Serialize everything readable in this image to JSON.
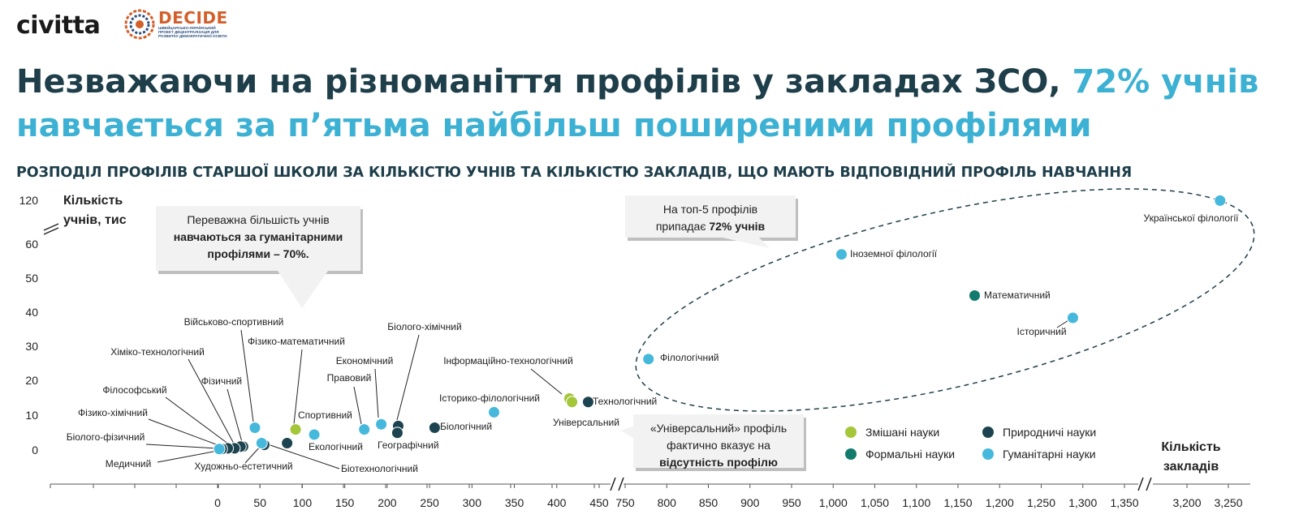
{
  "brand": {
    "civitta": "civitta",
    "decide": "DECIDE",
    "decide_sub": "ШВЕЙЦАРСЬКО-УКРАЇНСЬКИЙ ПРОЕКТ ДЕЦЕНТРАЛІЗАЦІЯ ДЛЯ РОЗВИТКУ ДЕМОКРАТИЧНОЇ ОСВІТИ"
  },
  "headline": {
    "part1": "Незважаючи на різноманіття профілів у закладах ЗСО, ",
    "accent": "72% учнів навчається за п’ятьма найбільш поширеними профілями"
  },
  "chart_title": "РОЗПОДІЛ ПРОФІЛІВ СТАРШОЇ ШКОЛИ ЗА КІЛЬКІСТЮ УЧНІВ ТА КІЛЬКІСТЮ ЗАКЛАДІВ, ЩО МАЮТЬ ВІДПОВІДНИЙ ПРОФІЛЬ НАВЧАННЯ",
  "colors": {
    "mixed": "#a4c639",
    "formal": "#137a6e",
    "natural": "#1c4450",
    "humanities": "#45b8dc",
    "headline": "#1e3e4a",
    "accent": "#3cb1d3"
  },
  "chart_data": {
    "type": "scatter",
    "xlabel": [
      "Кількість",
      "закладів"
    ],
    "ylabel": [
      "Кількість",
      "учнів, тис"
    ],
    "y_ticks": [
      "120",
      "60",
      "50",
      "40",
      "30",
      "20",
      "10",
      "0"
    ],
    "x_ticks": [
      "0",
      "50",
      "100",
      "150",
      "200",
      "250",
      "300",
      "350",
      "400",
      "450",
      "750",
      "800",
      "850",
      "900",
      "950",
      "1,000",
      "1,050",
      "1,100",
      "1,150",
      "1,200",
      "1,250",
      "1,300",
      "1,350",
      "3,200",
      "3,250"
    ],
    "axis_breaks": {
      "x": [
        "450-750",
        "1,350-3,200"
      ],
      "y": [
        "60-120"
      ]
    },
    "legend": [
      {
        "key": "mixed",
        "label": "Змішані науки"
      },
      {
        "key": "natural",
        "label": "Природничі науки"
      },
      {
        "key": "formal",
        "label": "Формальні науки"
      },
      {
        "key": "humanities",
        "label": "Гуманітарні науки"
      }
    ],
    "points": [
      {
        "label": "Української філології",
        "x": 3240,
        "y": 118,
        "group": "humanities"
      },
      {
        "label": "Іноземної філології",
        "x": 1010,
        "y": 57,
        "group": "humanities"
      },
      {
        "label": "Математичний",
        "x": 1170,
        "y": 45,
        "group": "formal"
      },
      {
        "label": "Історичний",
        "x": 1288,
        "y": 38.5,
        "group": "humanities"
      },
      {
        "label": "Філологічний",
        "x": 778,
        "y": 26.5,
        "group": "humanities"
      },
      {
        "label": "Інформаційно-технологічний",
        "x": 415,
        "y": 15,
        "group": "mixed"
      },
      {
        "label": "Універсальний",
        "x": 418,
        "y": 14,
        "group": "mixed"
      },
      {
        "label": "Технологічний",
        "x": 437,
        "y": 14,
        "group": "natural"
      },
      {
        "label": "Історико-філологічний",
        "x": 326,
        "y": 11,
        "group": "humanities"
      },
      {
        "label": "Біологічний",
        "x": 256,
        "y": 6.5,
        "group": "natural"
      },
      {
        "label": "Біолого-хімічний",
        "x": 213,
        "y": 7,
        "group": "natural"
      },
      {
        "label": "Географічний",
        "x": 212,
        "y": 5,
        "group": "natural"
      },
      {
        "label": "Економічний",
        "x": 193,
        "y": 7.5,
        "group": "humanities"
      },
      {
        "label": "Правовий",
        "x": 173,
        "y": 6,
        "group": "humanities"
      },
      {
        "label": "Спортивний",
        "x": 114,
        "y": 4.5,
        "group": "humanities"
      },
      {
        "label": "Фізико-математичний",
        "x": 92,
        "y": 6,
        "group": "mixed"
      },
      {
        "label": "Екологічний",
        "x": 82,
        "y": 2,
        "group": "natural"
      },
      {
        "label": "Біотехнологічний",
        "x": 55,
        "y": 1.5,
        "group": "natural"
      },
      {
        "label": "Військово-спортивний",
        "x": 44,
        "y": 6.5,
        "group": "humanities"
      },
      {
        "label": "Художньо-естетичний",
        "x": 52,
        "y": 2,
        "group": "humanities"
      },
      {
        "label": "Фізичний",
        "x": 30,
        "y": 1,
        "group": "natural"
      },
      {
        "label": "Хіміко-технологічний",
        "x": 27,
        "y": 1,
        "group": "natural"
      },
      {
        "label": "Філософський",
        "x": 20,
        "y": 0.5,
        "group": "natural"
      },
      {
        "label": "Фізико-хімічний",
        "x": 12,
        "y": 0.5,
        "group": "natural"
      },
      {
        "label": "Біолого-фізичний",
        "x": 5,
        "y": 0.3,
        "group": "natural"
      },
      {
        "label": "Медичний",
        "x": 2,
        "y": 0.3,
        "group": "humanities"
      }
    ],
    "callouts": [
      {
        "lines": [
          {
            "t": "Переважна більшість учнів",
            "b": false
          },
          {
            "t": "навчаються за гуманітарними",
            "b": true
          },
          {
            "t": "профілями – 70%.",
            "b": true
          }
        ]
      },
      {
        "lines": [
          {
            "t": "На топ-5 профілів",
            "b": false
          },
          {
            "t": "припадає ",
            "b": false,
            "bold_tail": "72% учнів"
          }
        ]
      },
      {
        "lines": [
          {
            "t": "«Універсальний» профіль",
            "b": false
          },
          {
            "t": "фактично вказує на",
            "b": false
          },
          {
            "t": "відсутність профілю",
            "b": true
          }
        ]
      }
    ]
  }
}
